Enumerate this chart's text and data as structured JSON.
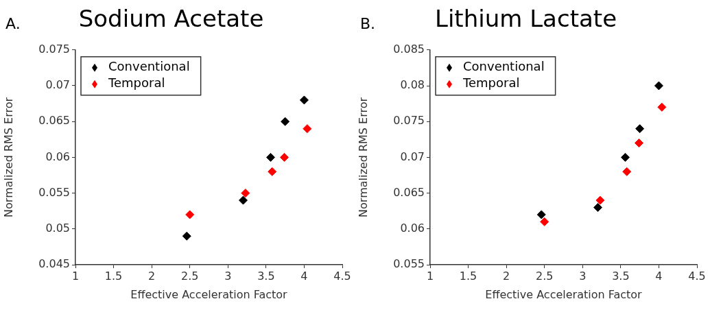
{
  "chart_data": [
    {
      "type": "scatter",
      "title": "Sodium Acetate",
      "xlabel": "Effective Acceleration Factor",
      "ylabel": "Normalized RMS Error",
      "annotations": [
        "A."
      ],
      "marker": "diamond",
      "legend": "top left",
      "xlim": [
        1,
        4.5
      ],
      "xticks": [
        1,
        1.5,
        2,
        2.5,
        3,
        3.5,
        4,
        4.5
      ],
      "ylim": [
        0.045,
        0.075
      ],
      "yticks": [
        0.045,
        0.05,
        0.055,
        0.06,
        0.065,
        0.07,
        0.075
      ],
      "series": [
        {
          "name": "Conventional",
          "color": "#000000",
          "x": [
            2.46,
            3.2,
            3.56,
            3.75,
            4.0
          ],
          "values": [
            0.049,
            0.054,
            0.06,
            0.065,
            0.068
          ]
        },
        {
          "name": "Temporal",
          "color": "#ff0000",
          "x": [
            2.5,
            3.23,
            3.58,
            3.74,
            4.04
          ],
          "values": [
            0.052,
            0.055,
            0.058,
            0.06,
            0.064
          ]
        }
      ]
    },
    {
      "type": "scatter",
      "title": "Lithium Lactate",
      "xlabel": "Effective Acceleration Factor",
      "ylabel": "Normalized RMS Error",
      "annotations": [
        "B."
      ],
      "marker": "diamond",
      "legend": "top left",
      "xlim": [
        1,
        4.5
      ],
      "xticks": [
        1,
        1.5,
        2,
        2.5,
        3,
        3.5,
        4,
        4.5
      ],
      "ylim": [
        0.055,
        0.085
      ],
      "yticks": [
        0.055,
        0.06,
        0.065,
        0.07,
        0.075,
        0.08,
        0.085
      ],
      "series": [
        {
          "name": "Conventional",
          "color": "#000000",
          "x": [
            2.46,
            3.2,
            3.56,
            3.75,
            4.0
          ],
          "values": [
            0.062,
            0.063,
            0.07,
            0.074,
            0.08
          ]
        },
        {
          "name": "Temporal",
          "color": "#ff0000",
          "x": [
            2.5,
            3.23,
            3.58,
            3.74,
            4.04
          ],
          "values": [
            0.061,
            0.064,
            0.068,
            0.072,
            0.077
          ]
        }
      ]
    }
  ]
}
